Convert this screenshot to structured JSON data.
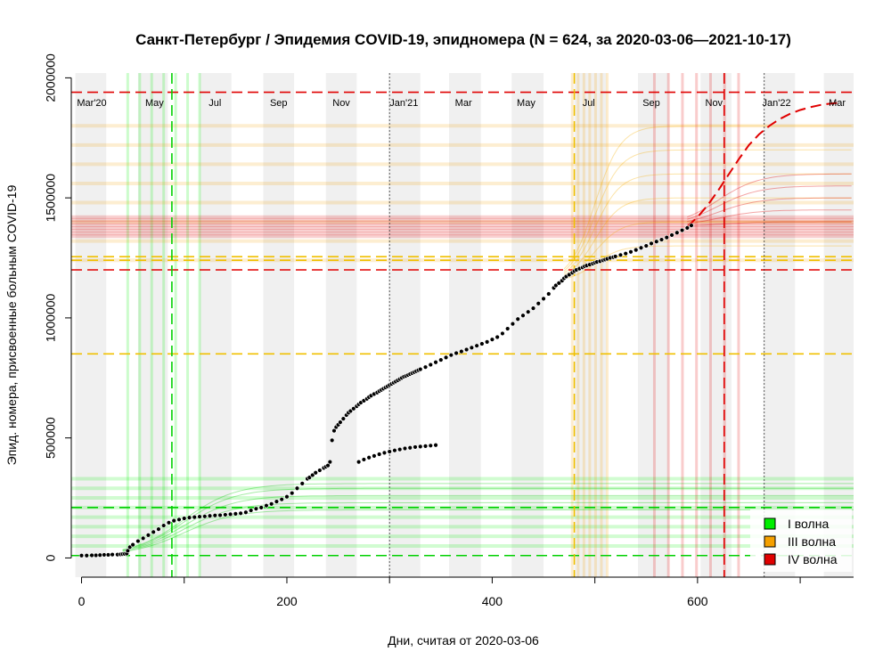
{
  "chart_data": {
    "type": "scatter",
    "title": "Санкт-Петербург / Эпидемия COVID-19, эпидномера (N = 624, за 2020-03-06—2021-10-17)",
    "xlabel": "Дни, считая от 2020-03-06",
    "ylabel": "Эпид. номера, присвоенные больным COVID-19",
    "xlim": [
      -10,
      752
    ],
    "ylim": [
      -80000,
      2020000
    ],
    "x_ticks": [
      0,
      200,
      400,
      600
    ],
    "y_ticks": [
      0,
      500000,
      1000000,
      1500000,
      2000000
    ],
    "x_minor_ticks": [
      100,
      300,
      500,
      700
    ],
    "grid": false,
    "month_labels": [
      {
        "x": 10,
        "text": "Mar'20"
      },
      {
        "x": 71,
        "text": "May"
      },
      {
        "x": 130,
        "text": "Jul"
      },
      {
        "x": 192,
        "text": "Sep"
      },
      {
        "x": 253,
        "text": "Nov"
      },
      {
        "x": 314,
        "text": "Jan'21"
      },
      {
        "x": 372,
        "text": "Mar"
      },
      {
        "x": 433,
        "text": "May"
      },
      {
        "x": 494,
        "text": "Jul"
      },
      {
        "x": 555,
        "text": "Sep"
      },
      {
        "x": 616,
        "text": "Nov"
      },
      {
        "x": 677,
        "text": "Jan'22"
      },
      {
        "x": 736,
        "text": "Mar"
      }
    ],
    "month_bands": [
      [
        -6,
        24
      ],
      [
        55,
        84
      ],
      [
        115,
        146
      ],
      [
        177,
        207
      ],
      [
        238,
        268
      ],
      [
        299,
        330
      ],
      [
        358,
        389
      ],
      [
        419,
        450
      ],
      [
        480,
        511
      ],
      [
        542,
        572
      ],
      [
        603,
        633
      ],
      [
        664,
        695
      ],
      [
        723,
        752
      ]
    ],
    "dotted_vlines": [
      300,
      665
    ],
    "waves": [
      {
        "name": "I волна",
        "color": "#00d000",
        "fill": "#00ee00",
        "hlines": [
          10000,
          210000
        ],
        "vline": 88,
        "band_y": [
          50000,
          330000
        ],
        "band_x": [
          45,
          115
        ]
      },
      {
        "name": "III волна",
        "color": "#f0c000",
        "fill": "#f5a000",
        "hlines": [
          850000,
          1240000,
          1255000
        ],
        "vline": 480,
        "band_y": [
          1240000,
          1800000
        ],
        "band_x": [
          478,
          512
        ]
      },
      {
        "name": "IV волна",
        "color": "#e00000",
        "fill": "#e00000",
        "hlines": [
          1200000,
          1940000
        ],
        "vline": 626,
        "band_y": [
          1340000,
          1420000
        ],
        "band_x": [
          558,
          640
        ]
      }
    ],
    "series": [
      {
        "color": "#000000",
        "x": [
          0,
          5,
          10,
          14,
          18,
          22,
          26,
          30,
          35,
          38,
          40,
          42,
          44,
          45,
          47,
          50,
          55,
          60,
          65,
          70,
          75,
          80,
          85,
          90,
          95,
          100,
          105,
          110,
          115,
          120,
          125,
          130,
          135,
          140,
          145,
          150,
          155,
          160,
          165,
          170,
          175,
          180,
          185,
          190,
          195,
          200,
          205,
          210,
          215,
          220,
          222,
          225,
          228,
          232,
          236,
          238,
          240,
          242,
          244,
          246,
          248,
          250,
          252,
          255,
          258,
          260,
          262,
          265,
          268,
          270,
          272,
          275,
          278,
          280,
          282,
          285,
          288,
          290,
          292,
          294,
          296,
          298,
          300,
          302,
          304,
          306,
          308,
          310,
          312,
          314,
          316,
          318,
          320,
          322,
          324,
          326,
          328,
          330,
          335,
          340,
          345,
          350,
          355,
          360,
          365,
          370,
          375,
          380,
          385,
          390,
          395,
          400,
          405,
          410,
          415,
          420,
          425,
          430,
          435,
          440,
          445,
          450,
          455,
          460,
          462,
          465,
          468,
          470,
          472,
          475,
          478,
          480,
          482,
          485,
          488,
          490,
          492,
          495,
          498,
          500,
          502,
          505,
          508,
          510,
          512,
          515,
          518,
          520,
          525,
          530,
          535,
          540,
          545,
          550,
          555,
          560,
          565,
          570,
          575,
          580,
          585,
          590,
          594
        ],
        "y": [
          10000,
          10000,
          11000,
          11000,
          12000,
          13000,
          13000,
          14000,
          14000,
          15000,
          16000,
          17000,
          18000,
          30000,
          45000,
          55000,
          70000,
          82000,
          95000,
          108000,
          120000,
          135000,
          147000,
          155000,
          160000,
          165000,
          168000,
          170000,
          172000,
          173000,
          175000,
          177000,
          178000,
          180000,
          182000,
          184000,
          186000,
          190000,
          198000,
          205000,
          210000,
          218000,
          225000,
          235000,
          244000,
          255000,
          270000,
          290000,
          310000,
          330000,
          335000,
          345000,
          355000,
          365000,
          375000,
          380000,
          385000,
          400000,
          490000,
          530000,
          545000,
          555000,
          565000,
          580000,
          595000,
          605000,
          612000,
          622000,
          632000,
          640000,
          647000,
          655000,
          663000,
          670000,
          676000,
          683000,
          689000,
          695000,
          700000,
          705000,
          710000,
          715000,
          720000,
          725000,
          730000,
          735000,
          740000,
          745000,
          750000,
          755000,
          758000,
          762000,
          766000,
          770000,
          774000,
          778000,
          782000,
          786000,
          795000,
          805000,
          815000,
          825000,
          835000,
          845000,
          853000,
          860000,
          868000,
          876000,
          884000,
          892000,
          900000,
          910000,
          920000,
          935000,
          955000,
          975000,
          995000,
          1010000,
          1025000,
          1040000,
          1060000,
          1080000,
          1100000,
          1125000,
          1135000,
          1145000,
          1155000,
          1165000,
          1172000,
          1180000,
          1188000,
          1195000,
          1200000,
          1205000,
          1210000,
          1215000,
          1218000,
          1222000,
          1226000,
          1230000,
          1233000,
          1236000,
          1240000,
          1243000,
          1246000,
          1250000,
          1253000,
          1256000,
          1262000,
          1268000,
          1275000,
          1283000,
          1292000,
          1300000,
          1310000,
          1318000,
          1326000,
          1335000,
          1345000,
          1355000,
          1365000,
          1375000,
          1385000
        ]
      },
      {
        "color": "#000000",
        "x": [
          270,
          275,
          280,
          285,
          290,
          295,
          300,
          305,
          310,
          315,
          320,
          325,
          330,
          335,
          340,
          345
        ],
        "y": [
          400000,
          410000,
          418000,
          425000,
          432000,
          438000,
          443000,
          448000,
          452000,
          456000,
          459000,
          462000,
          464000,
          466000,
          468000,
          470000
        ]
      }
    ],
    "projection": {
      "color": "#e00000",
      "dash": "long",
      "x": [
        590,
        600,
        610,
        620,
        630,
        640,
        650,
        660,
        670,
        680,
        690,
        700,
        710,
        720,
        730,
        740
      ],
      "y": [
        1380000,
        1420000,
        1470000,
        1530000,
        1595000,
        1660000,
        1720000,
        1765000,
        1800000,
        1828000,
        1850000,
        1866000,
        1878000,
        1887000,
        1893000,
        1897000
      ]
    },
    "fit_curves": [
      {
        "color": "#00cc00",
        "x0": 40,
        "x1": 752,
        "base": 10000,
        "plateaus": [
          200000,
          230000,
          260000,
          290000,
          310000
        ],
        "k": 0.04,
        "mid": 100
      },
      {
        "color": "#f5b000",
        "x0": 470,
        "x1": 752,
        "base": 1150000,
        "plateaus": [
          1300000,
          1400000,
          1500000,
          1600000,
          1700000,
          1800000
        ],
        "k": 0.08,
        "mid": 500
      },
      {
        "color": "#e00000",
        "x0": 590,
        "x1": 752,
        "base": 1380000,
        "plateaus": [
          1400000,
          1450000,
          1500000,
          1550000,
          1600000
        ],
        "k": 0.05,
        "mid": 620
      }
    ],
    "legend": {
      "position": "bottom-right",
      "entries": [
        {
          "label": "I волна",
          "color": "#00ee00"
        },
        {
          "label": "III волна",
          "color": "#f5a000"
        },
        {
          "label": "IV волна",
          "color": "#e00000"
        }
      ]
    }
  }
}
